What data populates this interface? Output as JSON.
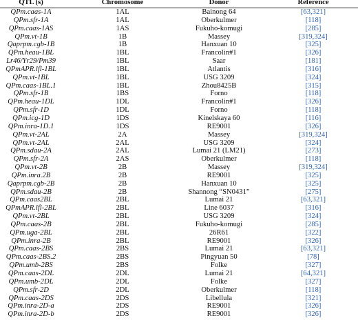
{
  "table": {
    "header": [
      "QTL (s)",
      "Chromosome",
      "Donor",
      "Reference"
    ],
    "rows": [
      [
        "QPm.caas-1A",
        "1AL",
        "Bainong 64",
        "[63,321]"
      ],
      [
        "QPm.sfr-1A",
        "1AL",
        "Oberkulmer",
        "[118]"
      ],
      [
        "QPm.caas-1AS",
        "1AS",
        "Fukuho-komugi",
        "[285]"
      ],
      [
        "QPm.vt-1B",
        "1B",
        "Massey",
        "[319,324]"
      ],
      [
        "Qaprpm.cgb-1B",
        "1B",
        "Hanxuan 10",
        "[325]"
      ],
      [
        "QPm.heau-1BL",
        "1BL",
        "Francolin#1",
        "[326]"
      ],
      [
        "Lr46/Yr29/Pm39",
        "1BL",
        "Saar",
        "[181]"
      ],
      [
        "QPmAPR.lfl-1BL",
        "1BL",
        "Atlantis",
        "[316]"
      ],
      [
        "QPm.vt-1BL",
        "1BL",
        "USG 3209",
        "[324]"
      ],
      [
        "QPm.caas-1BL.1",
        "1BL",
        "Zhou8425B",
        "[315]"
      ],
      [
        "QPm.sfr-1B",
        "1BS",
        "Forno",
        "[118]"
      ],
      [
        "QPm.heau-1DL",
        "1DL",
        "Francolin#1",
        "[326]"
      ],
      [
        "QPm.sfr-1D",
        "1DL",
        "Forno",
        "[118]"
      ],
      [
        "QPm.icg-1D",
        "1DS",
        "Kinelskaya 60",
        "[116]"
      ],
      [
        "QPm.inra-1D.1",
        "1DS",
        "RE9001",
        "[326]"
      ],
      [
        "QPm.vt-2AL",
        "2A",
        "Massey",
        "[319,324]"
      ],
      [
        "QPm.vt-2AL",
        "2AL",
        "USG 3209",
        "[324]"
      ],
      [
        "QPm.sdau-2A",
        "2AL",
        "Lumai 21 (LM21)",
        "[273]"
      ],
      [
        "QPm.sfr-2A",
        "2AS",
        "Oberkulmer",
        "[118]"
      ],
      [
        "QPm.vt-2B",
        "2B",
        "Massey",
        "[319,324]"
      ],
      [
        "QPm.inra.2B",
        "2B",
        "RE9001",
        "[325]"
      ],
      [
        "Qaprpm.cgb-2B",
        "2B",
        "Hanxuan 10",
        "[325]"
      ],
      [
        "QPm.sdau-2B",
        "2B",
        "Shannong “SN0431”",
        "[275]"
      ],
      [
        "QPm.caas2BL",
        "2BL",
        "Lumai 21",
        "[63,321]"
      ],
      [
        "QPmAPR.lfl-2BL",
        "2BL",
        "Line 6037",
        "[316]"
      ],
      [
        "QPm.vt-2BL",
        "2BL",
        "USG 3209",
        "[324]"
      ],
      [
        "QPm.caas-2B",
        "2BL",
        "Fukuho-komugi",
        "[285]"
      ],
      [
        "QPm.uga-2BL",
        "2BL",
        "26R61",
        "[322]"
      ],
      [
        "QPm.inra-2B",
        "2BL",
        "RE9001",
        "[326]"
      ],
      [
        "QPm.caas-2BS",
        "2BS",
        "Lumai 21",
        "[63,321]"
      ],
      [
        "QPm.caas-2BS.2",
        "2BS",
        "Pingyuan 50",
        "[78]"
      ],
      [
        "QPm.umb-2BS",
        "2BS",
        "Folke",
        "[327]"
      ],
      [
        "QPm.caas-2DL",
        "2DL",
        "Lumai 21",
        "[64,321]"
      ],
      [
        "QPm.umb-2DL",
        "2DL",
        "Folke",
        "[327]"
      ],
      [
        "QPm.sfr-2D",
        "2DL",
        "Oberkulmer",
        "[118]"
      ],
      [
        "QPm.caas-2DS",
        "2DS",
        "Libellula",
        "[321]"
      ],
      [
        "QPm.inra-2D-a",
        "2DS",
        "RE9001",
        "[326]"
      ],
      [
        "QPm.inra-2D-b",
        "2DS",
        "RE9001",
        "[326]"
      ]
    ]
  }
}
